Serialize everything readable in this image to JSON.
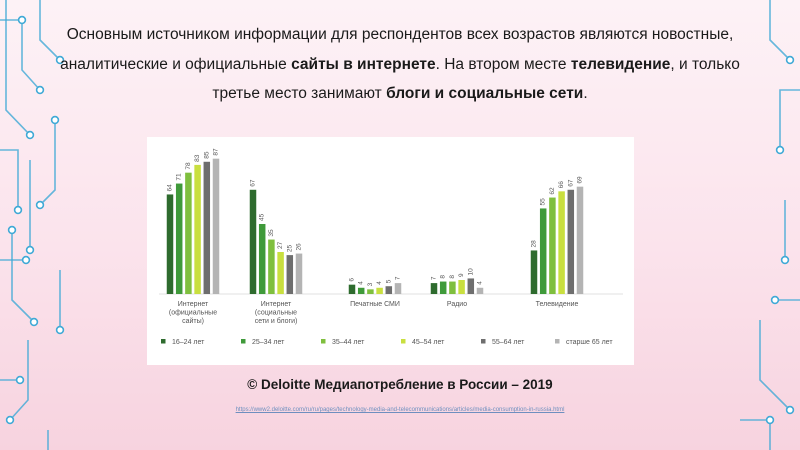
{
  "intro": {
    "part1": "Основным источником информации для респондентов всех возрастов являются новостные, аналитические и официальные ",
    "bold1": "сайты в интернете",
    "part2": ". На втором месте ",
    "bold2": "телевидение",
    "part3": ", и только третье место занимают ",
    "bold3": "блоги и социальные сети",
    "part4": "."
  },
  "caption": "© Deloitte Медиапотребление в России – 2019",
  "source_url": "https://www2.deloitte.com/ru/ru/pages/technology-media-and-telecommunications/articles/media-consumption-in-russia.html",
  "colors": {
    "accent_circuit": "#3fa9d6",
    "series": [
      "#2e6b2e",
      "#3f9a3a",
      "#7fbf3e",
      "#c9df3f",
      "#6e6e6e",
      "#b4b4b4"
    ]
  },
  "chart_data": {
    "type": "bar",
    "title": "",
    "xlabel": "",
    "ylabel": "",
    "ylim": [
      0,
      90
    ],
    "grid": false,
    "legend_position": "bottom",
    "categories": [
      "Интернет (официальные сайты)",
      "Интернет (социальные сети и блоги)",
      "Печатные СМИ",
      "Радио",
      "Телевидение"
    ],
    "category_lines": [
      [
        "Интернет",
        "(официальные",
        "сайты)"
      ],
      [
        "Интернет",
        "(социальные",
        "сети и блоги)"
      ],
      [
        "Печатные СМИ"
      ],
      [
        "Радио"
      ],
      [
        "Телевидение"
      ]
    ],
    "series": [
      {
        "name": "16–24 лет",
        "values": [
          64,
          67,
          6,
          7,
          28
        ]
      },
      {
        "name": "25–34 лет",
        "values": [
          71,
          45,
          4,
          8,
          55
        ]
      },
      {
        "name": "35–44 лет",
        "values": [
          78,
          35,
          3,
          8,
          62
        ]
      },
      {
        "name": "45–54 лет",
        "values": [
          83,
          27,
          4,
          9,
          66
        ]
      },
      {
        "name": "55–64 лет",
        "values": [
          85,
          25,
          5,
          10,
          67
        ]
      },
      {
        "name": "старше 65 лет",
        "values": [
          87,
          26,
          7,
          4,
          69
        ]
      }
    ]
  }
}
